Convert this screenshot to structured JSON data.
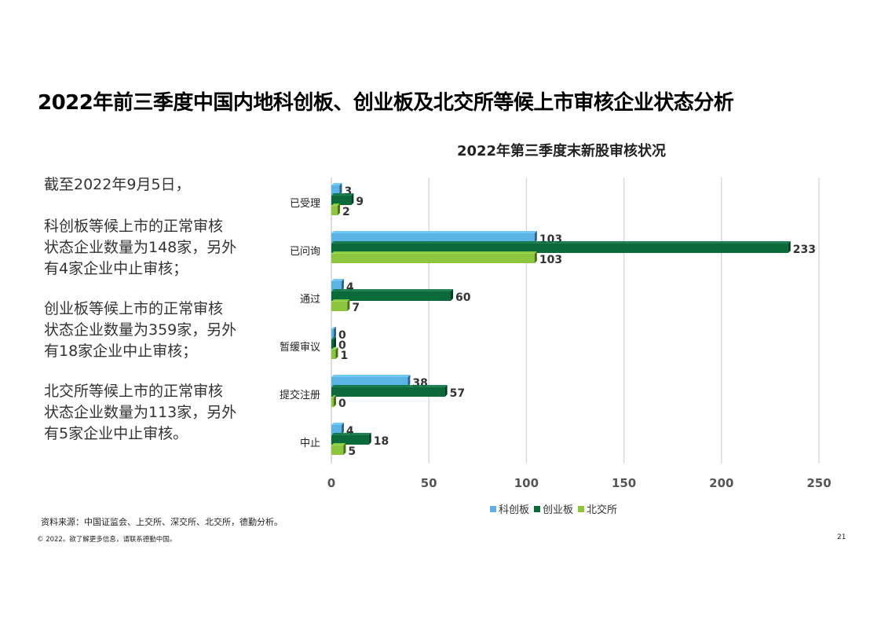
{
  "page": {
    "title": "2022年前三季度中国内地科创板、创业板及北交所等候上市审核企业状态分析",
    "summary": [
      "截至2022年9月5日，",
      "科创板等候上市的正常审核\n状态企业数量为148家，另外\n有4家企业中止审核；",
      "创业板等候上市的正常审核\n状态企业数量为359家，另外\n有18家企业中止审核；",
      "北交所等候上市的正常审核\n状态企业数量为113家，另外\n有5家企业中止审核。"
    ],
    "source": "资料来源：中国证监会、上交所、深交所、北交所，德勤分析。",
    "footer": "© 2022。欲了解更多信息，请联系德勤中国。",
    "page_number": "21"
  },
  "chart_data": {
    "type": "bar",
    "orientation": "horizontal",
    "title": "2022年第三季度末新股审核状况",
    "categories": [
      "已受理",
      "已问询",
      "通过",
      "暂缓审议",
      "提交注册",
      "中止"
    ],
    "series": [
      {
        "name": "科创板",
        "color": "#5bb4e5",
        "values": [
          3,
          103,
          4,
          0,
          38,
          4
        ]
      },
      {
        "name": "创业板",
        "color": "#0a6a3a",
        "values": [
          9,
          233,
          60,
          0,
          57,
          18
        ]
      },
      {
        "name": "北交所",
        "color": "#8cc63f",
        "values": [
          2,
          103,
          7,
          1,
          0,
          5
        ]
      }
    ],
    "xlim": [
      0,
      250
    ],
    "xticks": [
      "0",
      "50",
      "100",
      "150",
      "200",
      "250"
    ],
    "grid": true,
    "legend_position": "bottom"
  }
}
